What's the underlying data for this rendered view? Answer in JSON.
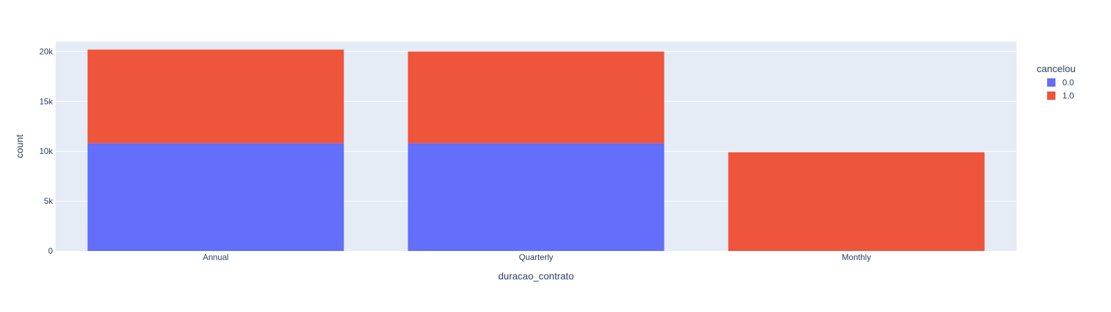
{
  "chart_data": {
    "type": "bar",
    "barmode": "stack",
    "categories": [
      "Annual",
      "Quarterly",
      "Monthly"
    ],
    "series": [
      {
        "name": "0.0",
        "values": [
          10800,
          10800,
          0
        ],
        "color": "#636efa"
      },
      {
        "name": "1.0",
        "values": [
          9400,
          9200,
          9900
        ],
        "color": "#ef553b"
      }
    ],
    "xlabel": "duracao_contrato",
    "ylabel": "count",
    "ylim": [
      0,
      21000
    ],
    "yticks": [
      0,
      5000,
      10000,
      15000,
      20000
    ],
    "ytick_labels": [
      "0",
      "5k",
      "10k",
      "15k",
      "20k"
    ],
    "legend_title": "cancelou",
    "legend_position": "top-right",
    "grid": true,
    "plot_background": "#e5ecf6",
    "grid_color": "#ffffff"
  }
}
